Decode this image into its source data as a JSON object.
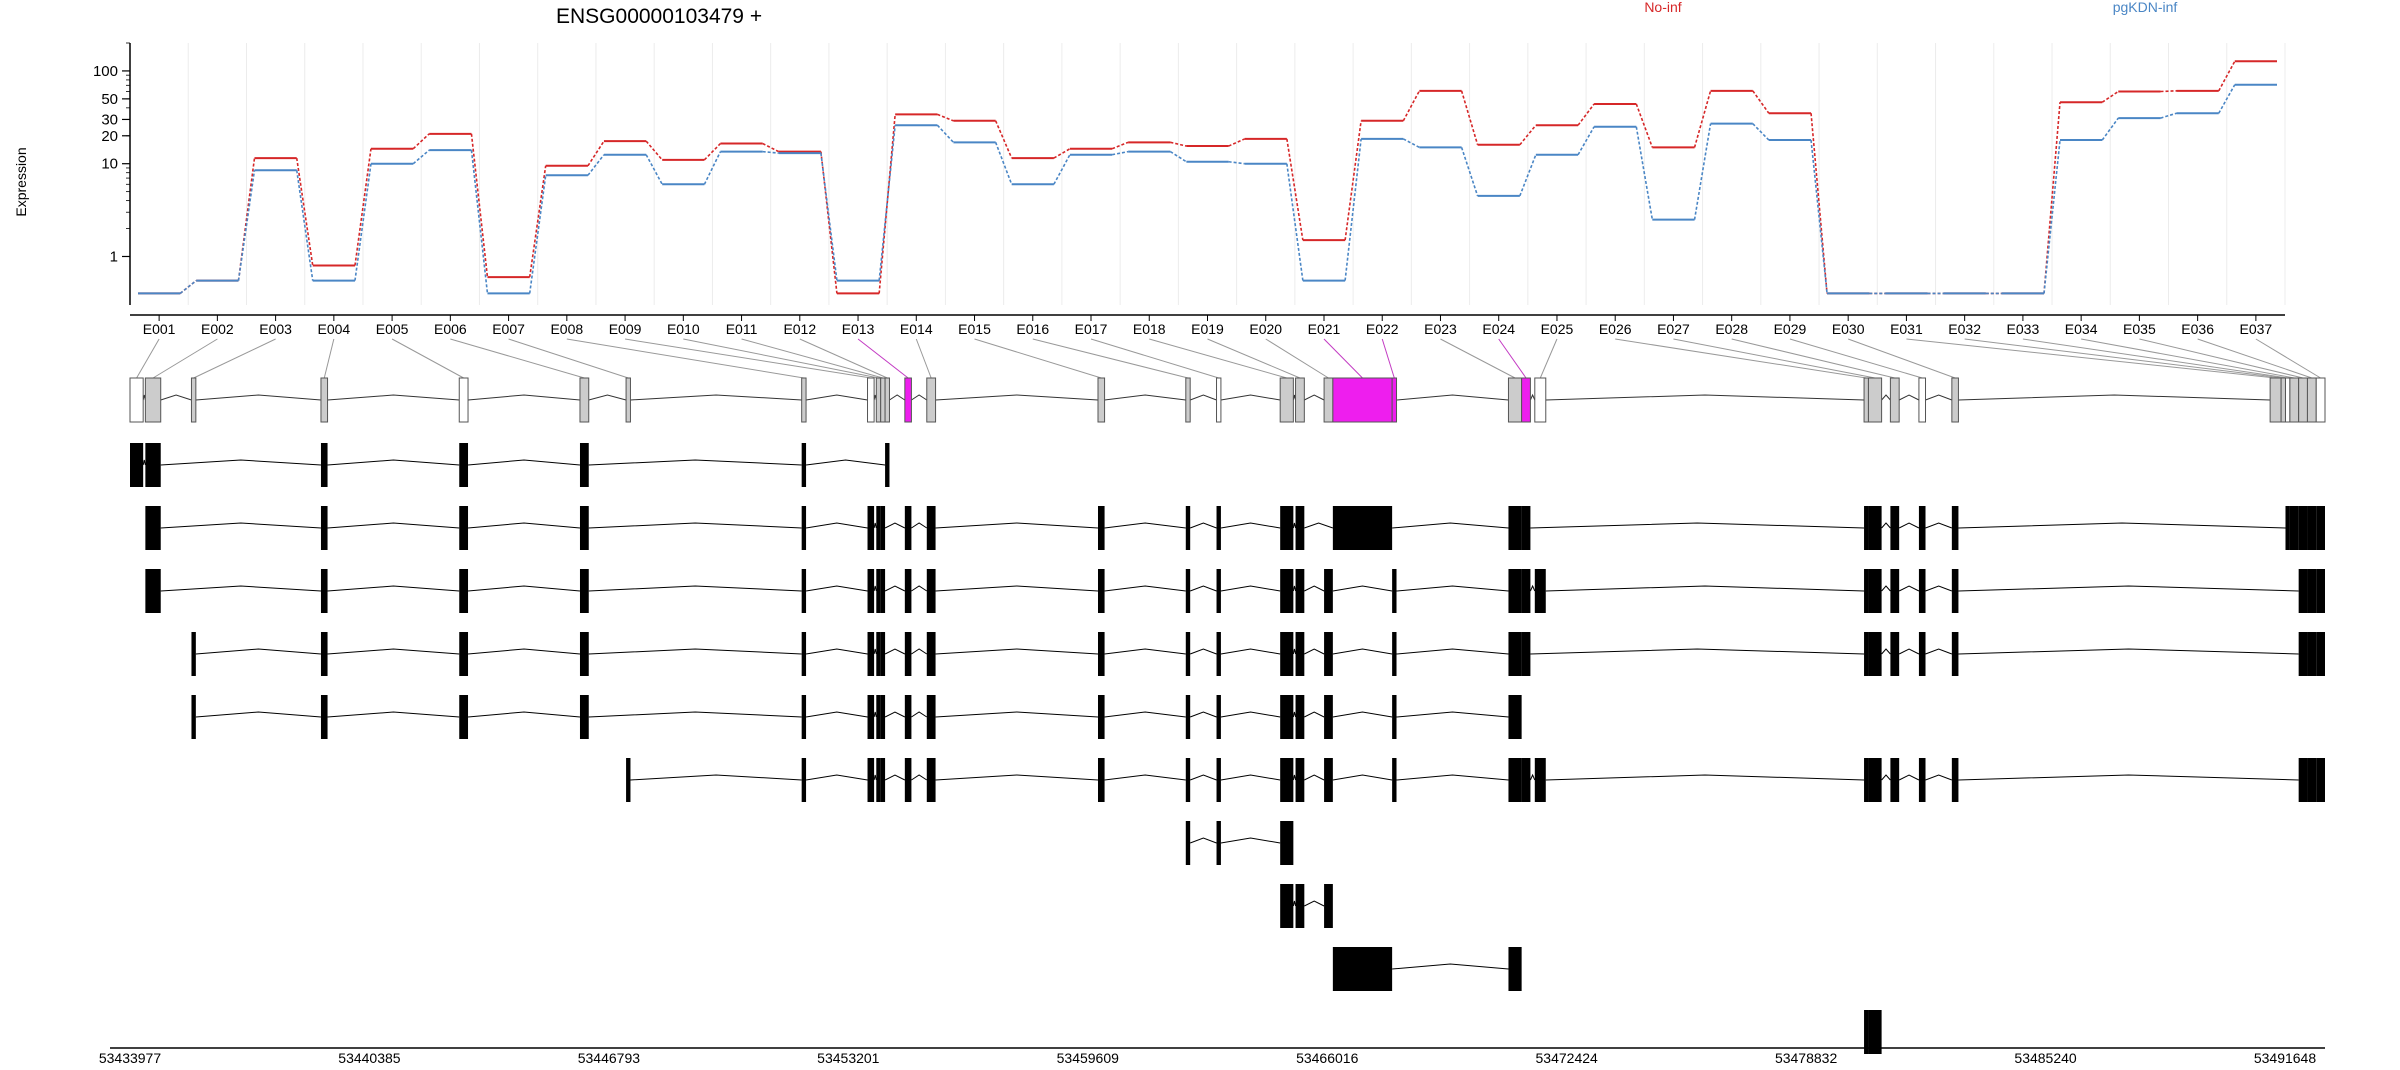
{
  "chart_data": {
    "type": "line",
    "title": "ENSG00000103479 +",
    "ylabel": "Expression",
    "xlabel": "",
    "y_scale": "log",
    "ylim": [
      0.3,
      200
    ],
    "y_ticks": [
      1,
      10,
      20,
      30,
      50,
      100
    ],
    "grid": "vertical lines at exon boundaries",
    "legend": "top, horizontal",
    "categories": [
      "E001",
      "E002",
      "E003",
      "E004",
      "E005",
      "E006",
      "E007",
      "E008",
      "E009",
      "E010",
      "E011",
      "E012",
      "E013",
      "E014",
      "E015",
      "E016",
      "E017",
      "E018",
      "E019",
      "E020",
      "E021",
      "E022",
      "E023",
      "E024",
      "E025",
      "E026",
      "E027",
      "E028",
      "E029",
      "E030",
      "E031",
      "E032",
      "E033",
      "E034",
      "E035",
      "E036",
      "E037"
    ],
    "series": [
      {
        "name": "No-inf",
        "color": "#d62728",
        "values": [
          0.4,
          0.55,
          11.5,
          0.8,
          14.5,
          21,
          0.6,
          9.5,
          17.5,
          11,
          16.5,
          13.5,
          0.4,
          34,
          29,
          11.5,
          14.5,
          17,
          15.5,
          18.5,
          1.5,
          29,
          61,
          16,
          26,
          44,
          15,
          61,
          35,
          0.4,
          0.4,
          0.4,
          0.4,
          46,
          60,
          61,
          127
        ]
      },
      {
        "name": "pgKDN-inf",
        "color": "#4a86c5",
        "values": [
          0.4,
          0.55,
          8.5,
          0.55,
          10,
          14,
          0.4,
          7.5,
          12.5,
          6,
          13.5,
          13,
          0.55,
          26,
          17,
          6,
          12.5,
          13.5,
          10.5,
          10,
          0.55,
          18.5,
          15,
          4.5,
          12.5,
          25,
          2.5,
          27,
          18,
          0.4,
          0.4,
          0.4,
          0.4,
          18,
          31,
          35,
          71
        ]
      }
    ],
    "genome_axis": {
      "ticks": [
        "53433977",
        "53440385",
        "53446793",
        "53453201",
        "53459609",
        "53466016",
        "53472424",
        "53478832",
        "53485240",
        "53491648"
      ]
    },
    "gene_model": {
      "highlight_color": "#ee1eee",
      "exon_fill": "#cccccc"
    },
    "transcripts": 10
  }
}
